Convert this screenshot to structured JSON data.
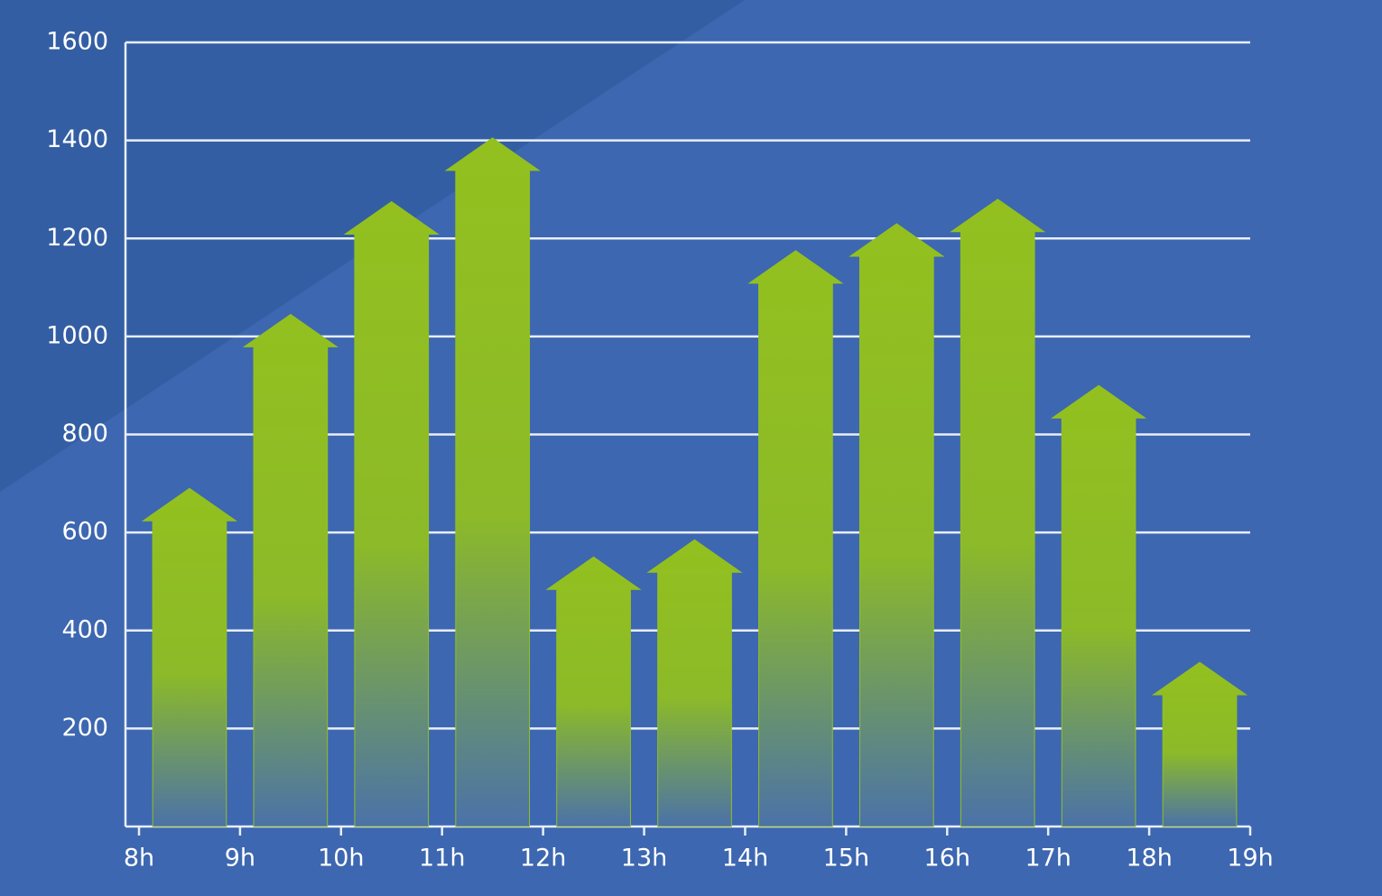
{
  "chart_data": {
    "type": "bar",
    "color": "#93c01f",
    "x": [
      8.5,
      9.5,
      10.5,
      11.5,
      12.5,
      13.5,
      14.5,
      15.5,
      16.5,
      17.5,
      18.5
    ],
    "values": [
      690,
      1045,
      1275,
      1405,
      550,
      585,
      1175,
      1230,
      1280,
      900,
      335
    ],
    "xlim": [
      8,
      19
    ],
    "xticks": [
      {
        "value": 8,
        "label": "8h"
      },
      {
        "value": 9,
        "label": "9h"
      },
      {
        "value": 10,
        "label": "10h"
      },
      {
        "value": 11,
        "label": "11h"
      },
      {
        "value": 12,
        "label": "12h"
      },
      {
        "value": 13,
        "label": "13h"
      },
      {
        "value": 14,
        "label": "14h"
      },
      {
        "value": 15,
        "label": "15h"
      },
      {
        "value": 16,
        "label": "16h"
      },
      {
        "value": 17,
        "label": "17h"
      },
      {
        "value": 18,
        "label": "18h"
      },
      {
        "value": 19,
        "label": "19h"
      }
    ],
    "ylim": [
      0,
      1600
    ],
    "yticks": [
      200,
      400,
      600,
      800,
      1000,
      1200,
      1400,
      1600
    ],
    "grid": true
  }
}
